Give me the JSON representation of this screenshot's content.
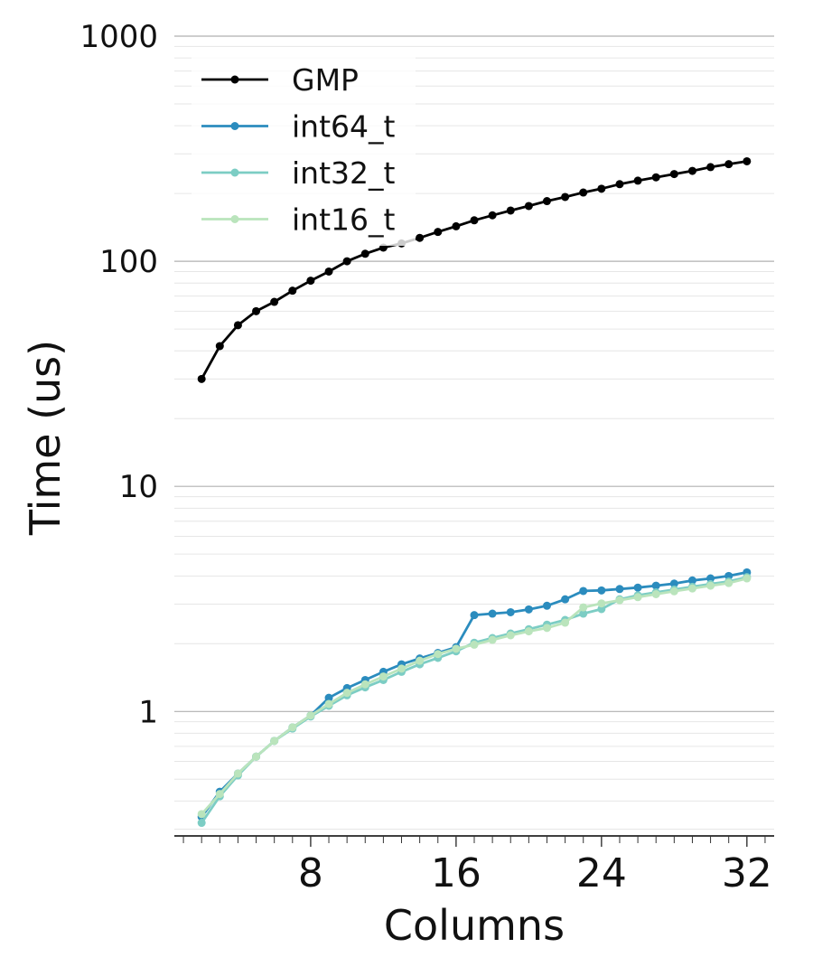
{
  "chart_data": {
    "type": "line",
    "title": "",
    "xlabel": "Columns",
    "ylabel": "Time (us)",
    "xlim": [
      0.5,
      33.5
    ],
    "ylim": [
      0.28,
      1000
    ],
    "yscale": "log",
    "x_ticks": [
      8,
      16,
      24,
      32
    ],
    "x_tick_labels": [
      "8",
      "16",
      "24",
      "32"
    ],
    "y_ticks": [
      1,
      10,
      100,
      1000
    ],
    "y_tick_labels": [
      "1",
      "10",
      "100",
      "1000"
    ],
    "grid": true,
    "legend_position": "top-left",
    "x": [
      2,
      3,
      4,
      5,
      6,
      7,
      8,
      9,
      10,
      11,
      12,
      13,
      14,
      15,
      16,
      17,
      18,
      19,
      20,
      21,
      22,
      23,
      24,
      25,
      26,
      27,
      28,
      29,
      30,
      31,
      32
    ],
    "series": [
      {
        "name": "GMP",
        "color": "#000000",
        "values": [
          30,
          42,
          52,
          60,
          66,
          74,
          82,
          90,
          100,
          108,
          115,
          120,
          127,
          135,
          143,
          152,
          160,
          168,
          176,
          185,
          193,
          202,
          210,
          220,
          228,
          236,
          244,
          252,
          262,
          270,
          278
        ]
      },
      {
        "name": "int64_t",
        "color": "#2b8cbe",
        "values": [
          0.34,
          0.44,
          0.53,
          0.63,
          0.74,
          0.85,
          0.96,
          1.15,
          1.27,
          1.38,
          1.5,
          1.62,
          1.72,
          1.82,
          1.93,
          2.68,
          2.72,
          2.76,
          2.84,
          2.95,
          3.15,
          3.43,
          3.45,
          3.5,
          3.55,
          3.62,
          3.7,
          3.82,
          3.9,
          4.0,
          4.15
        ]
      },
      {
        "name": "int32_t",
        "color": "#7ccdc4",
        "values": [
          0.32,
          0.42,
          0.52,
          0.63,
          0.74,
          0.84,
          0.95,
          1.06,
          1.18,
          1.28,
          1.38,
          1.5,
          1.62,
          1.73,
          1.85,
          2.02,
          2.12,
          2.22,
          2.32,
          2.43,
          2.55,
          2.72,
          2.85,
          3.15,
          3.28,
          3.38,
          3.48,
          3.58,
          3.68,
          3.78,
          3.95
        ]
      },
      {
        "name": "int16_t",
        "color": "#bae4bc",
        "values": [
          0.35,
          0.43,
          0.53,
          0.63,
          0.74,
          0.85,
          0.96,
          1.08,
          1.21,
          1.32,
          1.43,
          1.55,
          1.68,
          1.8,
          1.9,
          1.98,
          2.08,
          2.18,
          2.27,
          2.35,
          2.48,
          2.9,
          3.02,
          3.12,
          3.22,
          3.32,
          3.42,
          3.52,
          3.62,
          3.72,
          3.9
        ]
      }
    ]
  }
}
